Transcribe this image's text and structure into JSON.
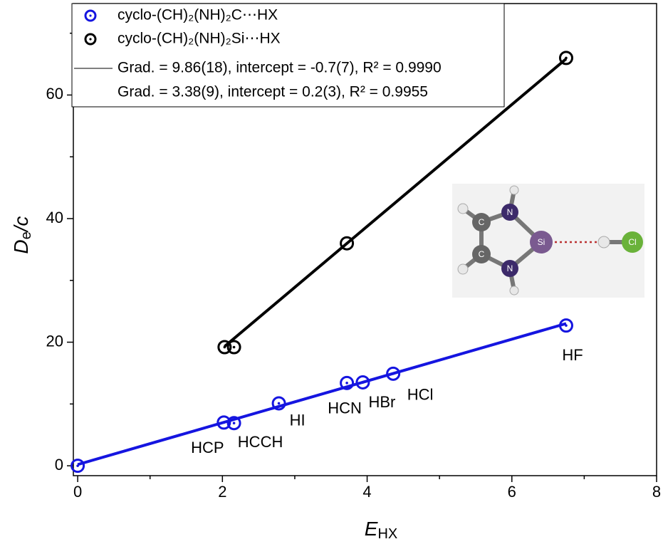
{
  "chart_data": {
    "type": "scatter",
    "x_label": {
      "text": "E",
      "subscript": "HX"
    },
    "y_label": {
      "text": "D",
      "subscript": "e",
      "suffix": "/c"
    },
    "xlim": [
      -0.06,
      8
    ],
    "ylim": [
      -1.6,
      74.8
    ],
    "xticks": [
      0,
      2,
      4,
      6,
      8
    ],
    "yticks": [
      0,
      20,
      40,
      60
    ],
    "series": [
      {
        "name": "cyclo-(CH)₂(NH)₂C⋯HX",
        "color": "#1515e0",
        "x": [
          0,
          2.02,
          2.16,
          2.78,
          3.72,
          3.94,
          4.36,
          6.75
        ],
        "values": [
          0,
          7.0,
          6.9,
          10.1,
          13.4,
          13.5,
          14.9,
          22.7
        ],
        "point_labels": [
          null,
          "HCP",
          "HCCH",
          "HI",
          "HCN",
          "HBr",
          "HCl",
          "HF"
        ],
        "fit": {
          "slope": 3.38,
          "intercept": 0.2,
          "label": "Grad. = 3.38(9),   intercept = 0.2(3),  R² = 0.9955"
        }
      },
      {
        "name": "cyclo-(CH)₂(NH)₂Si⋯HX",
        "color": "#000000",
        "x": [
          2.03,
          2.16,
          3.72,
          6.75
        ],
        "values": [
          19.2,
          19.2,
          36.0,
          66.0
        ],
        "fit": {
          "slope": 9.86,
          "intercept": -0.7,
          "label": "Grad. = 9.86(18), intercept = -0.7(7), R² = 0.9990"
        }
      }
    ]
  },
  "inset": {
    "atom_labels": [
      "C",
      "C",
      "N",
      "N",
      "Si",
      "Cl"
    ]
  }
}
